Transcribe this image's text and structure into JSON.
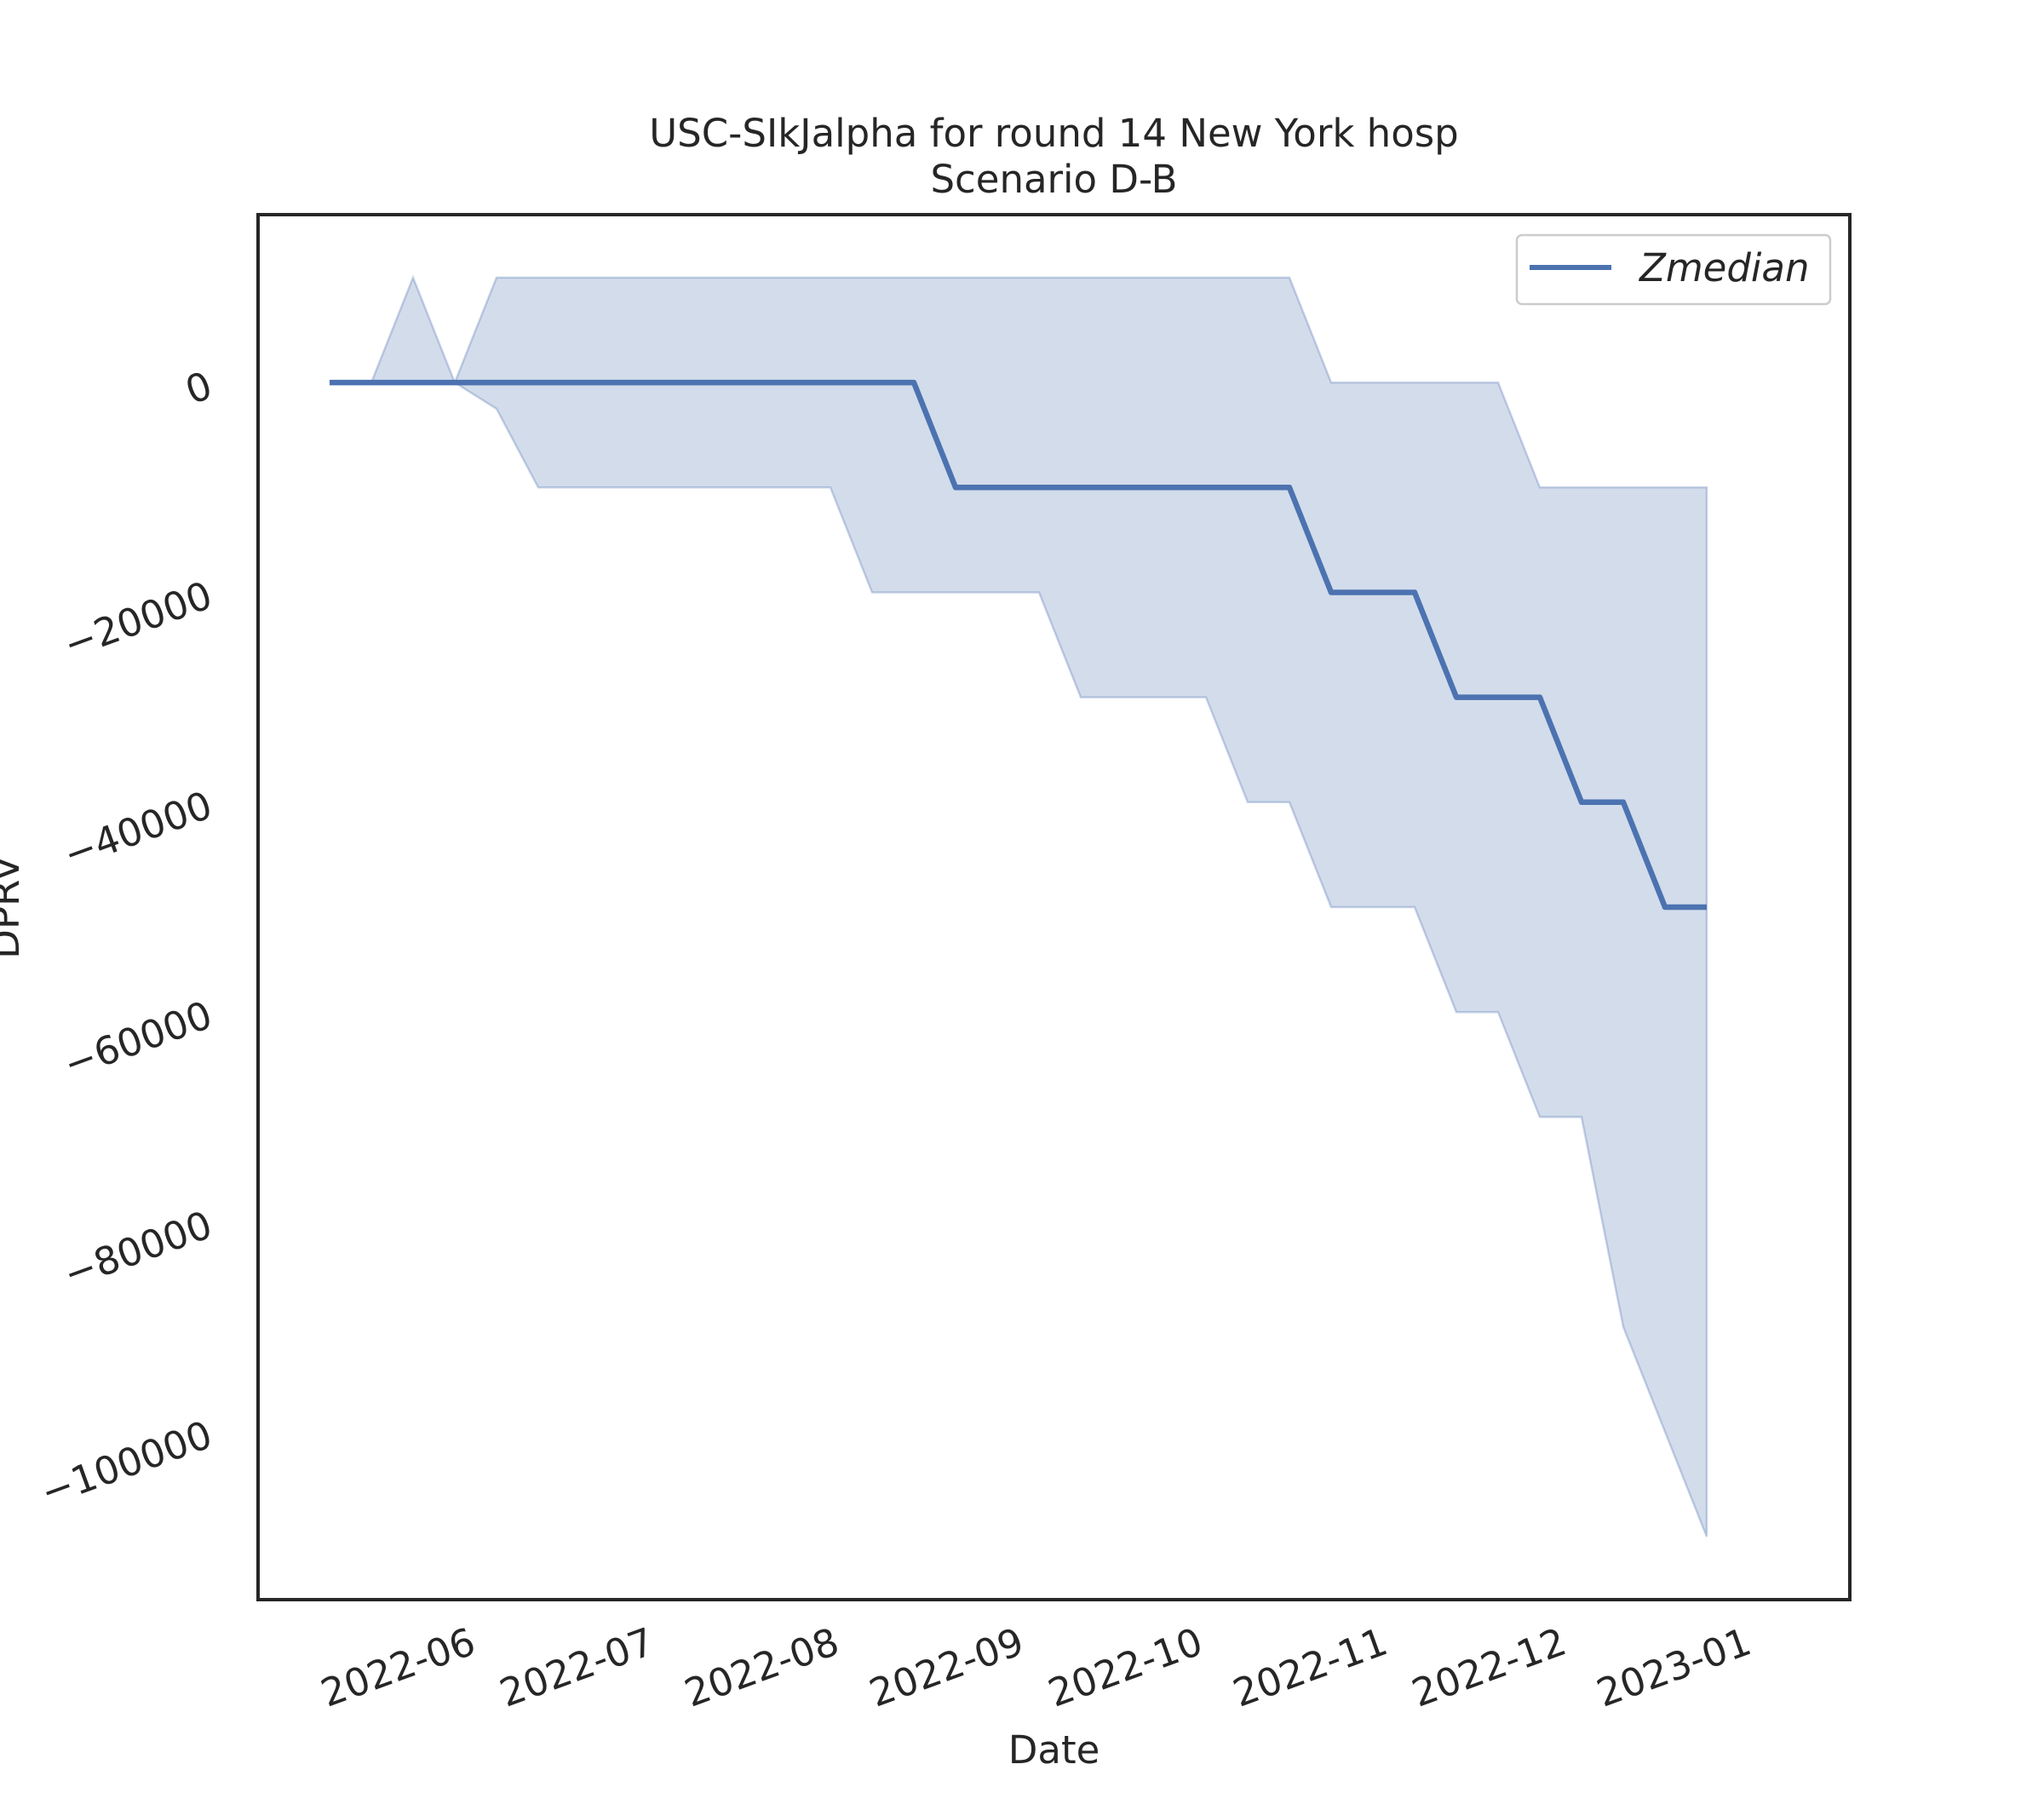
{
  "chart_data": {
    "type": "line",
    "title": "USC-SIkJalpha for round 14 New York hosp",
    "subtitle": "Scenario D-B",
    "xlabel": "Date",
    "ylabel": "DPRV",
    "x_ticks": [
      "2022-06",
      "2022-07",
      "2022-08",
      "2022-09",
      "2022-10",
      "2022-11",
      "2022-12",
      "2023-01"
    ],
    "y_ticks": [
      0,
      -20000,
      -40000,
      -60000,
      -80000,
      -100000
    ],
    "y_tick_labels": [
      "0",
      "−20000",
      "−40000",
      "−60000",
      "−80000",
      "−100000"
    ],
    "ylim": [
      -116000,
      16000
    ],
    "xlim": [
      "2022-05-02",
      "2023-01-24"
    ],
    "grid": false,
    "legend": {
      "position": "top-right",
      "entries": [
        "Zmedian"
      ]
    },
    "series": [
      {
        "name": "Zmedian",
        "color": "#4c72b0",
        "x": [
          "2022-05-14",
          "2022-05-21",
          "2022-05-28",
          "2022-06-04",
          "2022-06-11",
          "2022-08-20",
          "2022-08-27",
          "2022-10-22",
          "2022-10-29",
          "2022-11-12",
          "2022-11-19",
          "2022-12-03",
          "2022-12-10",
          "2022-12-17",
          "2022-12-24",
          "2022-12-31"
        ],
        "y": [
          0,
          0,
          0,
          0,
          0,
          0,
          -10000,
          -10000,
          -20000,
          -20000,
          -30000,
          -30000,
          -40000,
          -40000,
          -50000,
          -50000
        ]
      }
    ],
    "band": {
      "color": "#4c72b0",
      "x": [
        "2022-05-14",
        "2022-05-21",
        "2022-05-28",
        "2022-06-04",
        "2022-06-11",
        "2022-06-18",
        "2022-08-06",
        "2022-08-13",
        "2022-09-10",
        "2022-09-17",
        "2022-10-08",
        "2022-10-15",
        "2022-10-22",
        "2022-10-29",
        "2022-11-12",
        "2022-11-19",
        "2022-11-26",
        "2022-12-03",
        "2022-12-10",
        "2022-12-17",
        "2022-12-24",
        "2022-12-31"
      ],
      "upper": [
        0,
        0,
        10000,
        0,
        10000,
        10000,
        10000,
        10000,
        10000,
        10000,
        10000,
        10000,
        10000,
        0,
        0,
        0,
        0,
        -10000,
        -10000,
        -10000,
        -10000,
        -10000
      ],
      "lower": [
        0,
        0,
        0,
        0,
        -2500,
        -10000,
        -10000,
        -20000,
        -20000,
        -30000,
        -30000,
        -40000,
        -40000,
        -50000,
        -50000,
        -60000,
        -60000,
        -70000,
        -70000,
        -90000,
        -100000,
        -110000
      ]
    }
  }
}
